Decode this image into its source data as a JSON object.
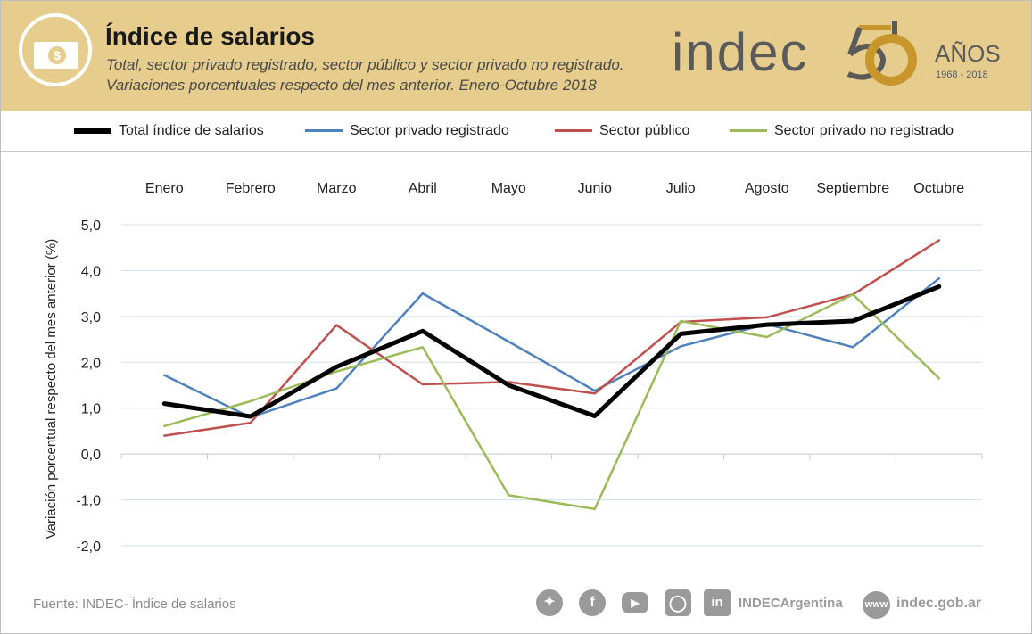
{
  "header": {
    "title": "Índice de salarios",
    "subtitle_1": "Total, sector privado registrado, sector público y sector privado no registrado.",
    "subtitle_2": "Variaciones porcentuales respecto del mes anterior. Enero-Octubre 2018",
    "bill_symbol": "$",
    "brand": {
      "name": "indec",
      "anniversary_number": "50",
      "anniversary_word": "AÑOS",
      "anniversary_years": "1968  -  2018"
    }
  },
  "colors": {
    "header_bg": "#e6cd8e",
    "brand_dark": "#5a5a5a",
    "brand_gold": "#c9962c",
    "total": "#000000",
    "privado_registrado": "#4f81bd",
    "publico": "#c0504d",
    "privado_no_registrado": "#9bbb59"
  },
  "chart_data": {
    "type": "line",
    "title": "Índice de salarios",
    "ylabel": "Variación  porcentual respecto del mes anterior (%)",
    "xlabel": "",
    "categories": [
      "Enero",
      "Febrero",
      "Marzo",
      "Abril",
      "Mayo",
      "Junio",
      "Julio",
      "Agosto",
      "Septiembre",
      "Octubre"
    ],
    "ylim": [
      -2.0,
      5.0
    ],
    "yticks": [
      "5,0",
      "4,0",
      "3,0",
      "2,0",
      "1,0",
      "0,0",
      "-1,0",
      "-2,0"
    ],
    "ytick_values": [
      5,
      4,
      3,
      2,
      1,
      0,
      -1,
      -2
    ],
    "grid": true,
    "legend_position": "top",
    "series": [
      {
        "name": "Total índice de salarios",
        "color_key": "total",
        "values": [
          1.1,
          0.82,
          1.9,
          2.68,
          1.5,
          0.83,
          2.62,
          2.82,
          2.9,
          3.65
        ]
      },
      {
        "name": "Sector privado registrado",
        "color_key": "privado_registrado",
        "values": [
          1.72,
          0.8,
          1.43,
          3.5,
          2.45,
          1.38,
          2.35,
          2.83,
          2.33,
          3.83
        ]
      },
      {
        "name": "Sector público",
        "color_key": "publico",
        "values": [
          0.4,
          0.68,
          2.81,
          1.52,
          1.57,
          1.32,
          2.88,
          2.98,
          3.48,
          4.66
        ]
      },
      {
        "name": "Sector privado no registrado",
        "color_key": "privado_no_registrado",
        "values": [
          0.61,
          1.15,
          1.8,
          2.33,
          -0.9,
          -1.2,
          2.9,
          2.55,
          3.48,
          1.65
        ]
      }
    ]
  },
  "footer": {
    "source": "Fuente: INDEC- Índice de salarios",
    "social_icons": [
      "twitter-icon",
      "facebook-icon",
      "youtube-icon",
      "instagram-icon",
      "linkedin-icon"
    ],
    "handle": "INDECArgentina",
    "web_icon_text": "www",
    "website": "indec.gob.ar"
  }
}
